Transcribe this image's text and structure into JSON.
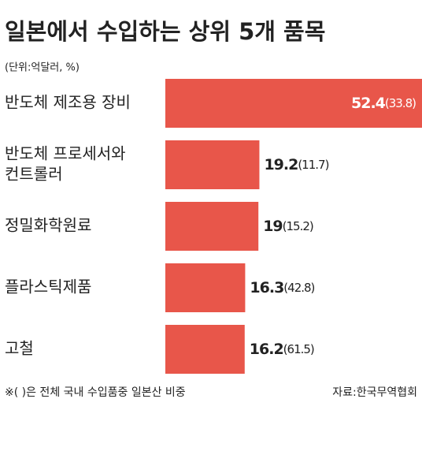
{
  "chart_data": {
    "type": "bar",
    "orientation": "horizontal",
    "title": "일본에서 수입하는 상위 5개 품목",
    "subtitle": "(단위:억달러, %)",
    "categories": [
      [
        "반도체 제조용 장비"
      ],
      [
        "반도체 프로세서와",
        "컨트롤러"
      ],
      [
        "정밀화학원료"
      ],
      [
        "플라스틱제품"
      ],
      [
        "고철"
      ]
    ],
    "values": [
      52.4,
      19.2,
      19.0,
      16.3,
      16.2
    ],
    "shares": [
      33.8,
      11.7,
      15.2,
      42.8,
      61.5
    ],
    "share_labels": [
      "(33.8)",
      "(11.7)",
      "(15.2)",
      "(42.8)",
      "(61.5)"
    ],
    "color": "#e8564a",
    "note": "※( )은 전체 국내 수입품중 일본산 비중",
    "source": "자료:한국무역협회"
  }
}
